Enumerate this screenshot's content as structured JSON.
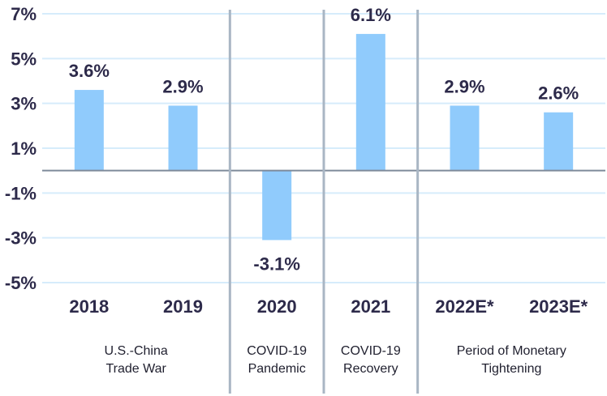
{
  "chart_data": {
    "type": "bar",
    "categories": [
      "2018",
      "2019",
      "2020",
      "2021",
      "2022E*",
      "2023E*"
    ],
    "values": [
      3.6,
      2.9,
      -3.1,
      6.1,
      2.9,
      2.6
    ],
    "data_labels": [
      "3.6%",
      "2.9%",
      "-3.1%",
      "6.1%",
      "2.9%",
      "2.6%"
    ],
    "yticks": [
      7,
      5,
      3,
      1,
      -1,
      -3,
      -5
    ],
    "ytick_labels": [
      "7%",
      "5%",
      "3%",
      "1%",
      "-1%",
      "-3%",
      "-5%"
    ],
    "ylim": [
      -5,
      7
    ],
    "grid": true,
    "periods": [
      {
        "lines": [
          "U.S.-China",
          "Trade War"
        ],
        "from": 0,
        "to": 1
      },
      {
        "lines": [
          "COVID-19",
          "Pandemic"
        ],
        "from": 2,
        "to": 2
      },
      {
        "lines": [
          "COVID-19",
          "Recovery"
        ],
        "from": 3,
        "to": 3
      },
      {
        "lines": [
          "Period of Monetary",
          "Tightening"
        ],
        "from": 4,
        "to": 5
      }
    ],
    "colors": {
      "bar": "#90cbfc",
      "grid": "#d6ecfb",
      "zero_line": "#7e8a9a",
      "divider": "#a9b6c4",
      "text": "#2d2a4a"
    }
  }
}
